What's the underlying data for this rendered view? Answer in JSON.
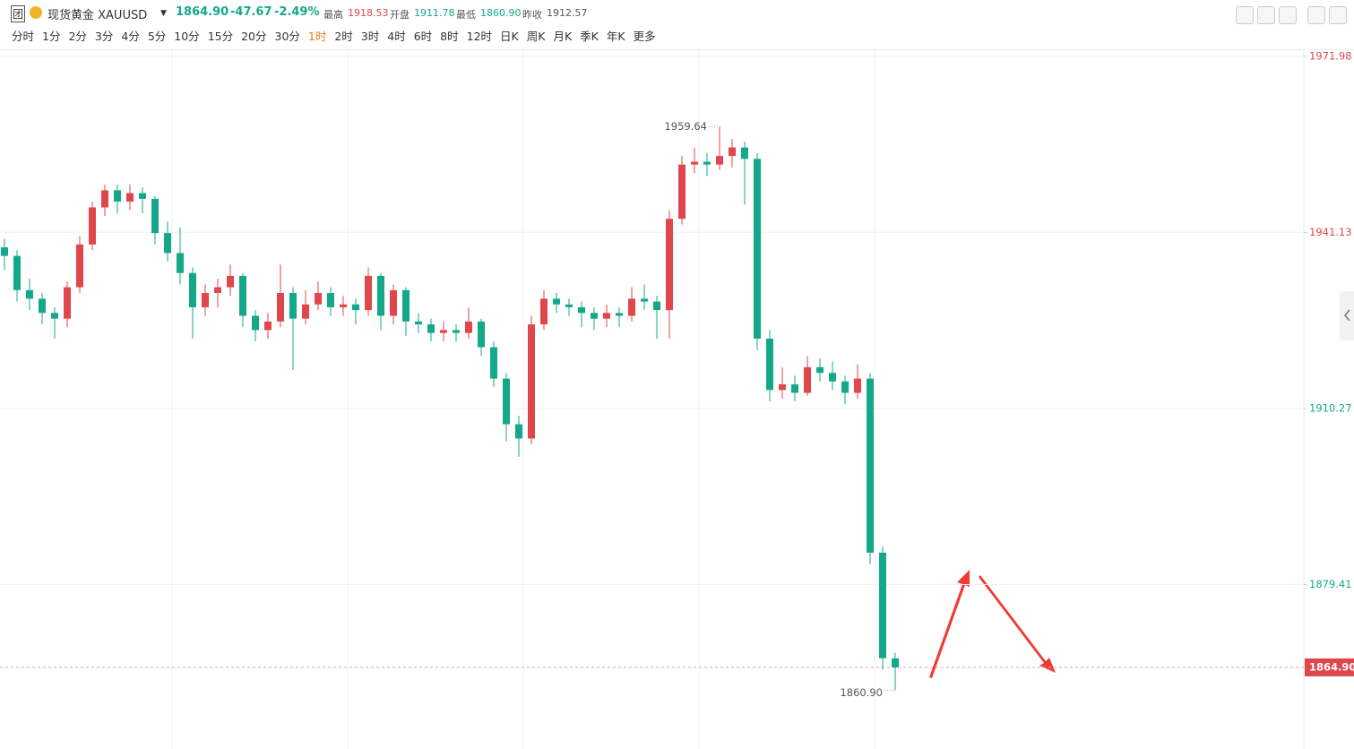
{
  "header": {
    "badge": "团",
    "symbol": "现货黄金 XAUUSD",
    "price": "1864.90",
    "change": "-47.67",
    "change_pct": "-2.49%",
    "high_label": "最高",
    "high": "1918.53",
    "open_label": "开盘",
    "open": "1911.78",
    "low_label": "最低",
    "low": "1860.90",
    "prev_label": "昨收",
    "prev": "1912.57"
  },
  "periods": [
    "分时",
    "1分",
    "2分",
    "3分",
    "4分",
    "5分",
    "10分",
    "15分",
    "20分",
    "30分",
    "1时",
    "2时",
    "3时",
    "4时",
    "6时",
    "8时",
    "12时",
    "日K",
    "周K",
    "月K",
    "季K",
    "年K",
    "更多"
  ],
  "active_period": "1时",
  "chart_data": {
    "type": "candlestick",
    "open": [
      1938.5,
      1937.0,
      1931.0,
      1929.5,
      1927.0,
      1926.0,
      1931.5,
      1939.0,
      1945.5,
      1948.5,
      1946.5,
      1948.0,
      1947.0,
      1941.0,
      1937.5,
      1934.0,
      1928.0,
      1930.5,
      1931.5,
      1933.5,
      1926.5,
      1924.0,
      1925.5,
      1930.5,
      1926.0,
      1928.5,
      1930.5,
      1928.0,
      1928.5,
      1927.5,
      1933.5,
      1926.5,
      1931.0,
      1925.5,
      1925.0,
      1923.5,
      1924.0,
      1923.5,
      1925.5,
      1921.0,
      1915.5,
      1907.5,
      1905.0,
      1925.0,
      1929.5,
      1928.5,
      1928.0,
      1927.0,
      1926.0,
      1927.0,
      1926.5,
      1929.5,
      1929.0,
      1927.5,
      1943.5,
      1953.0,
      1953.5,
      1953.0,
      1954.5,
      1956.0,
      1954.0,
      1922.5,
      1913.5,
      1914.5,
      1913.0,
      1917.5,
      1916.5,
      1915.0,
      1913.0,
      1915.5,
      1885.0,
      1866.5
    ],
    "high": [
      1940.0,
      1938.0,
      1933.0,
      1930.5,
      1928.0,
      1932.5,
      1940.5,
      1946.5,
      1949.5,
      1949.5,
      1949.5,
      1949.0,
      1947.5,
      1943.0,
      1942.0,
      1935.0,
      1932.0,
      1933.0,
      1935.5,
      1934.0,
      1927.5,
      1927.0,
      1935.5,
      1931.5,
      1931.0,
      1932.5,
      1931.5,
      1930.0,
      1929.5,
      1935.0,
      1934.0,
      1932.0,
      1931.5,
      1927.0,
      1926.0,
      1925.5,
      1925.0,
      1928.0,
      1926.0,
      1922.0,
      1916.5,
      1909.0,
      1926.5,
      1931.0,
      1930.5,
      1929.5,
      1929.0,
      1928.0,
      1928.5,
      1928.0,
      1931.5,
      1932.0,
      1930.0,
      1945.0,
      1954.5,
      1956.0,
      1955.0,
      1959.64,
      1957.5,
      1957.0,
      1955.0,
      1924.0,
      1917.5,
      1916.0,
      1919.5,
      1919.0,
      1918.5,
      1916.0,
      1918.0,
      1916.5,
      1886.0,
      1867.5
    ],
    "low": [
      1934.5,
      1929.0,
      1927.5,
      1925.0,
      1922.5,
      1924.5,
      1930.5,
      1938.0,
      1944.0,
      1944.5,
      1945.0,
      1944.5,
      1939.0,
      1936.0,
      1932.0,
      1922.5,
      1926.5,
      1928.0,
      1930.0,
      1924.5,
      1922.0,
      1922.5,
      1924.5,
      1917.0,
      1925.0,
      1927.5,
      1926.5,
      1926.5,
      1925.0,
      1926.5,
      1924.0,
      1925.0,
      1923.0,
      1923.5,
      1922.0,
      1922.0,
      1922.0,
      1922.5,
      1919.5,
      1914.0,
      1904.5,
      1901.8,
      1904.0,
      1924.0,
      1927.0,
      1926.5,
      1924.5,
      1924.0,
      1924.5,
      1924.5,
      1925.5,
      1927.5,
      1922.5,
      1922.5,
      1942.5,
      1951.5,
      1951.0,
      1952.0,
      1952.5,
      1946.0,
      1920.5,
      1911.5,
      1912.0,
      1911.5,
      1912.5,
      1915.0,
      1913.5,
      1911.0,
      1912.0,
      1883.0,
      1864.5,
      1860.9
    ],
    "close": [
      1937.0,
      1931.0,
      1929.5,
      1927.0,
      1926.0,
      1931.5,
      1939.0,
      1945.5,
      1948.5,
      1946.5,
      1948.0,
      1947.0,
      1941.0,
      1937.5,
      1934.0,
      1928.0,
      1930.5,
      1931.5,
      1933.5,
      1926.5,
      1924.0,
      1925.5,
      1930.5,
      1926.0,
      1928.5,
      1930.5,
      1928.0,
      1928.5,
      1927.5,
      1933.5,
      1926.5,
      1931.0,
      1925.5,
      1925.0,
      1923.5,
      1924.0,
      1923.5,
      1925.5,
      1921.0,
      1915.5,
      1907.5,
      1905.0,
      1925.0,
      1929.5,
      1928.5,
      1928.0,
      1927.0,
      1926.0,
      1927.0,
      1926.5,
      1929.5,
      1929.0,
      1927.5,
      1943.5,
      1953.0,
      1953.5,
      1953.0,
      1954.5,
      1956.0,
      1954.0,
      1922.5,
      1913.5,
      1914.5,
      1913.0,
      1917.5,
      1916.5,
      1915.0,
      1913.0,
      1915.5,
      1885.0,
      1866.5,
      1864.9
    ],
    "up_color": "#e0474c",
    "down_color": "#14a88a",
    "ylim": [
      1850.6,
      1973.2
    ],
    "yticks": [
      1971.98,
      1941.13,
      1910.27,
      1879.41
    ],
    "ytick_colors": [
      "#e0474c",
      "#e0474c",
      "#14a88a",
      "#14a88a"
    ],
    "grid": true,
    "last_price": {
      "value": 1864.9,
      "label": "1864.90"
    },
    "max_label": "1959.64",
    "min_label": "1860.90"
  }
}
